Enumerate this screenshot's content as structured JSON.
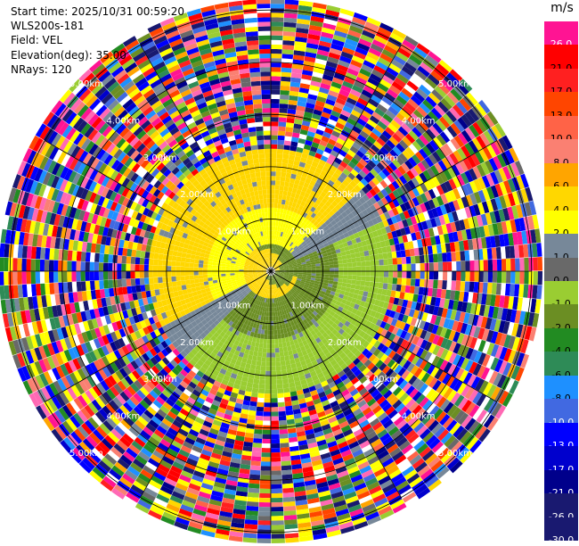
{
  "header": {
    "start_time": "Start time: 2025/10/31 00:59:20",
    "instrument": "WLS200s-181",
    "field": "Field: VEL",
    "elevation": "Elevation(deg): 35.00",
    "nrays": "NRays: 120"
  },
  "colorbar": {
    "unit": "m/s",
    "levels": [
      {
        "label": "26.0",
        "color": "#ff1493"
      },
      {
        "label": "21.0",
        "color": "#ff0000"
      },
      {
        "label": "17.0",
        "color": "#ff2020"
      },
      {
        "label": "13.0",
        "color": "#ff4500"
      },
      {
        "label": "10.0",
        "color": "#ff6347"
      },
      {
        "label": "8.0",
        "color": "#fa8072"
      },
      {
        "label": "6.0",
        "color": "#ffa500"
      },
      {
        "label": "4.0",
        "color": "#ffd700"
      },
      {
        "label": "2.0",
        "color": "#ffff00"
      },
      {
        "label": "1.0",
        "color": "#778899"
      },
      {
        "label": "0.0",
        "color": "#696969"
      },
      {
        "label": "-1.0",
        "color": "#9acd32"
      },
      {
        "label": "-2.0",
        "color": "#6b8e23"
      },
      {
        "label": "-4.0",
        "color": "#228b22"
      },
      {
        "label": "-6.0",
        "color": "#2e8b57"
      },
      {
        "label": "-8.0",
        "color": "#1e90ff"
      },
      {
        "label": "-10.0",
        "color": "#4169e1"
      },
      {
        "label": "-13.0",
        "color": "#0000ff"
      },
      {
        "label": "-17.0",
        "color": "#0000cd"
      },
      {
        "label": "-21.0",
        "color": "#00008b"
      },
      {
        "label": "-26.0",
        "color": "#191970"
      },
      {
        "label": "-30.0",
        "color": "#191970"
      }
    ]
  },
  "chart_data": {
    "type": "heatmap",
    "projection": "polar (PPI)",
    "nrays": 120,
    "range_rings_km": [
      1,
      2,
      3,
      4,
      5
    ],
    "range_ring_labels": [
      "1.00km",
      "2.00km",
      "3.00km",
      "4.00km",
      "5.00km"
    ],
    "max_range_km": 5.0,
    "spokes_deg": [
      0,
      30,
      60,
      90,
      120,
      150,
      180,
      210,
      240,
      270,
      300,
      330
    ],
    "radial_velocity_structure": {
      "inner_core_km": 0.5,
      "coherent_region_km": 2.2,
      "noise_beyond_km": 2.2
    }
  }
}
